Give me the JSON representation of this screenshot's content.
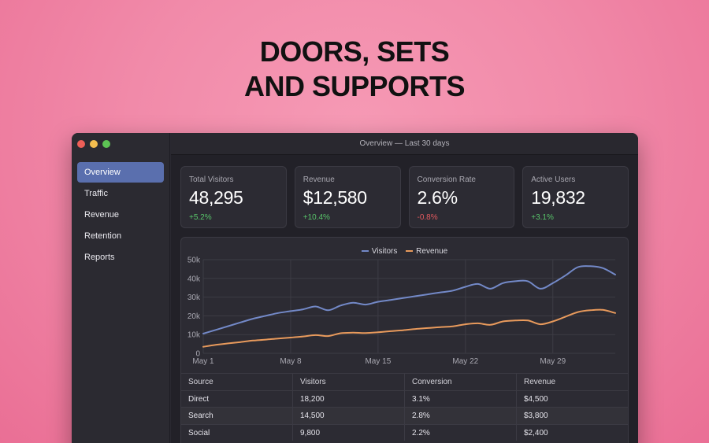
{
  "headline": {
    "line1": "DOORS, SETS",
    "line2": "AND SUPPORTS"
  },
  "window": {
    "title": "Overview — Last 30 days"
  },
  "sidebar": {
    "items": [
      {
        "label": "Overview",
        "active": true
      },
      {
        "label": "Traffic",
        "active": false
      },
      {
        "label": "Revenue",
        "active": false
      },
      {
        "label": "Retention",
        "active": false
      },
      {
        "label": "Reports",
        "active": false
      }
    ]
  },
  "cards": [
    {
      "label": "Total Visitors",
      "value": "48,295",
      "delta": "+5.2%",
      "trend": "up"
    },
    {
      "label": "Revenue",
      "value": "$12,580",
      "delta": "+10.4%",
      "trend": "up"
    },
    {
      "label": "Conversion Rate",
      "value": "2.6%",
      "delta": "-0.8%",
      "trend": "down"
    },
    {
      "label": "Active Users",
      "value": "19,832",
      "delta": "+3.1%",
      "trend": "up"
    }
  ],
  "colors": {
    "visitors": "#7389c8",
    "revenue": "#e89a5c",
    "up": "#58c46a",
    "down": "#e45a5f"
  },
  "chart_data": {
    "type": "line",
    "x_tick_labels": [
      "May 1",
      "May 8",
      "May 15",
      "May 22",
      "May 29"
    ],
    "y_tick_labels": [
      "0",
      "10k",
      "20k",
      "30k",
      "40k",
      "50k"
    ],
    "ylim": [
      0,
      50000
    ],
    "xlim": [
      1,
      34
    ],
    "grid": true,
    "legend_position": "top-center",
    "series": [
      {
        "name": "Visitors",
        "x": [
          1,
          2,
          3,
          4,
          5,
          6,
          7,
          8,
          9,
          10,
          11,
          12,
          13,
          14,
          15,
          16,
          17,
          18,
          19,
          20,
          21,
          22,
          23,
          24,
          25,
          26,
          27,
          28,
          29,
          30,
          31,
          32,
          33,
          34
        ],
        "values": [
          10500,
          12500,
          14500,
          16500,
          18500,
          20000,
          21500,
          22500,
          23500,
          25000,
          23000,
          25500,
          27000,
          26000,
          27500,
          28500,
          29500,
          30500,
          31500,
          32500,
          33500,
          35500,
          37000,
          34500,
          37500,
          38500,
          38500,
          34500,
          37500,
          41500,
          46000,
          46500,
          45500,
          42000
        ]
      },
      {
        "name": "Revenue",
        "x": [
          1,
          2,
          3,
          4,
          5,
          6,
          7,
          8,
          9,
          10,
          11,
          12,
          13,
          14,
          15,
          16,
          17,
          18,
          19,
          20,
          21,
          22,
          23,
          24,
          25,
          26,
          27,
          28,
          29,
          30,
          31,
          32,
          33,
          34
        ],
        "values": [
          3500,
          4500,
          5300,
          6000,
          6800,
          7300,
          7900,
          8400,
          9000,
          9700,
          9200,
          10700,
          11000,
          10800,
          11200,
          11800,
          12300,
          13000,
          13500,
          14000,
          14400,
          15500,
          16000,
          15200,
          17000,
          17500,
          17500,
          15500,
          17000,
          19500,
          22000,
          23000,
          23200,
          21500
        ]
      }
    ]
  },
  "table": {
    "headers": [
      "Source",
      "Visitors",
      "Conversion",
      "Revenue"
    ],
    "rows": [
      [
        "Direct",
        "18,200",
        "3.1%",
        "$4,500"
      ],
      [
        "Search",
        "14,500",
        "2.8%",
        "$3,800"
      ],
      [
        "Social",
        "9,800",
        "2.2%",
        "$2,400"
      ]
    ]
  }
}
